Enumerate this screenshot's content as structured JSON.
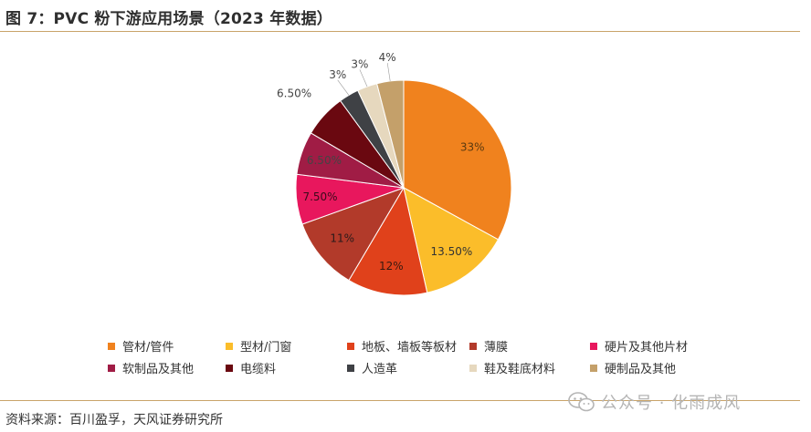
{
  "header": {
    "title": "图 7：PVC 粉下游应用场景（2023 年数据）"
  },
  "footer": {
    "source": "资料来源：百川盈孚，天风证券研究所",
    "watermark": "公众号 · 化雨成风"
  },
  "chart_data": {
    "type": "pie",
    "start_angle_deg": 0,
    "direction": "clockwise",
    "legend_position": "bottom",
    "slices": [
      {
        "name": "管材/管件",
        "value": 33,
        "label": "33%",
        "color": "#F0821E",
        "label_color": "#5a3a10"
      },
      {
        "name": "型材/门窗",
        "value": 13.5,
        "label": "13.50%",
        "color": "#FBBD2A",
        "label_color": "#333333"
      },
      {
        "name": "地板、墙板等板材",
        "value": 12,
        "label": "12%",
        "color": "#E0411B",
        "label_color": "#3a1a10"
      },
      {
        "name": "薄膜",
        "value": 11,
        "label": "11%",
        "color": "#B23A2A",
        "label_color": "#2a1a1a"
      },
      {
        "name": "硬片及其他片材",
        "value": 7.5,
        "label": "7.50%",
        "color": "#E8175D",
        "label_color": "#3a0a1a"
      },
      {
        "name": "软制品及其他",
        "value": 6.5,
        "label": "6.50%",
        "color": "#A01C45",
        "label_color": "#444444"
      },
      {
        "name": "电缆料",
        "value": 6.5,
        "label": "6.50%",
        "color": "#6A0810",
        "label_color": "#444444"
      },
      {
        "name": "人造革",
        "value": 3,
        "label": "3%",
        "color": "#3F4145",
        "label_color": "#444444"
      },
      {
        "name": "鞋及鞋底材料",
        "value": 3,
        "label": "3%",
        "color": "#E6D8BE",
        "label_color": "#444444"
      },
      {
        "name": "硬制品及其他",
        "value": 4,
        "label": "4%",
        "color": "#C4A06A",
        "label_color": "#444444"
      }
    ]
  }
}
